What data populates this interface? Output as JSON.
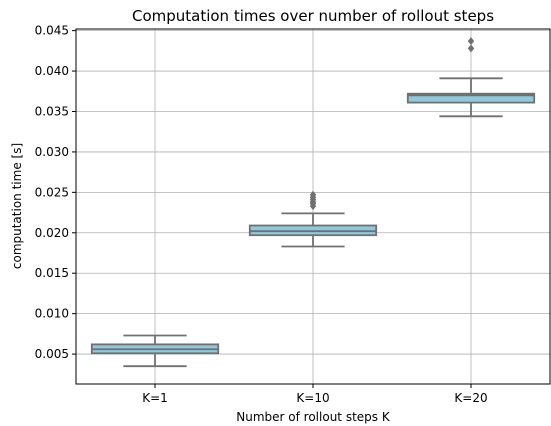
{
  "chart_data": {
    "type": "box",
    "title": "Computation times over number of rollout steps",
    "xlabel": "Number of rollout steps K",
    "ylabel": "computation time [s]",
    "categories": [
      "K=1",
      "K=10",
      "K=20"
    ],
    "ylim": [
      0.0013,
      0.0452
    ],
    "yticks": [
      0.005,
      0.01,
      0.015,
      0.02,
      0.025,
      0.03,
      0.035,
      0.04,
      0.045
    ],
    "ytick_labels": [
      "0.005",
      "0.010",
      "0.015",
      "0.020",
      "0.025",
      "0.030",
      "0.035",
      "0.040",
      "0.045"
    ],
    "grid": true,
    "boxes": [
      {
        "category": "K=1",
        "whisker_low": 0.0035,
        "q1": 0.0051,
        "median": 0.0056,
        "q3": 0.0062,
        "whisker_high": 0.0073,
        "outliers": []
      },
      {
        "category": "K=10",
        "whisker_low": 0.0183,
        "q1": 0.0197,
        "median": 0.0202,
        "q3": 0.0209,
        "whisker_high": 0.0224,
        "outliers": [
          0.0233,
          0.0236,
          0.0238,
          0.0241,
          0.0244,
          0.0247
        ]
      },
      {
        "category": "K=20",
        "whisker_low": 0.0344,
        "q1": 0.0361,
        "median": 0.037,
        "q3": 0.0372,
        "whisker_high": 0.0391,
        "outliers": [
          0.0428,
          0.0437
        ]
      }
    ],
    "colors": {
      "box_fill": "#8fc9de",
      "box_edge": "#707070",
      "grid": "#b0b0b0",
      "outlier": "#707070"
    }
  }
}
